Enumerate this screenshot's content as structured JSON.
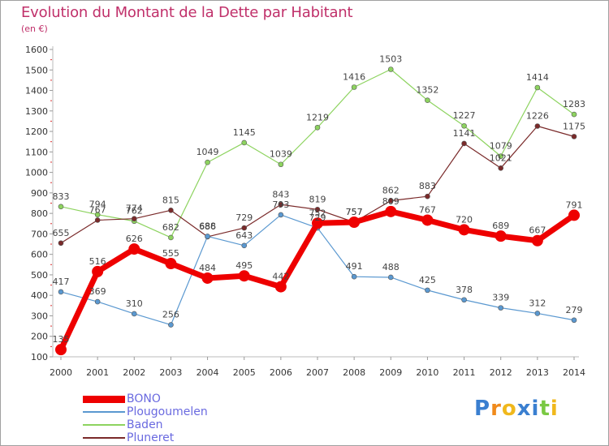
{
  "header": {
    "title": "Evolution du Montant de la Dette par Habitant",
    "subtitle": "(en €)"
  },
  "logo": {
    "letters": [
      "P",
      "r",
      "o",
      "x",
      "i",
      "t",
      "i"
    ],
    "colors": [
      "#3a7fd0",
      "#f08a1c",
      "#f0b81c",
      "#3a7fd0",
      "#3a7fd0",
      "#7ac943",
      "#f0b81c"
    ]
  },
  "chart_data": {
    "type": "line",
    "x": [
      "2000",
      "2001",
      "2002",
      "2003",
      "2004",
      "2005",
      "2006",
      "2007",
      "2008",
      "2009",
      "2010",
      "2011",
      "2012",
      "2013",
      "2014"
    ],
    "ylim": [
      100,
      1600
    ],
    "yticks": [
      "100",
      "200",
      "300",
      "400",
      "500",
      "600",
      "700",
      "800",
      "900",
      "1000",
      "1100",
      "1200",
      "1300",
      "1400",
      "1500",
      "1600"
    ],
    "grid": false,
    "legend_position": "bottom-left",
    "series": [
      {
        "name": "BONO",
        "color": "#ee0000",
        "values": [
          135,
          516,
          626,
          555,
          484,
          495,
          442,
          752,
          757,
          809,
          767,
          720,
          689,
          667,
          791
        ],
        "labels": [
          "135",
          "516",
          "626",
          "555",
          "484",
          "495",
          "442",
          "752",
          "757",
          "809",
          "767",
          "720",
          "689",
          "667",
          "791"
        ]
      },
      {
        "name": "Plougoumelen",
        "color": "#5a98d0",
        "values": [
          417,
          369,
          310,
          256,
          688,
          643,
          793,
          729,
          491,
          488,
          425,
          378,
          339,
          312,
          279
        ],
        "labels": [
          "417",
          "369",
          "310",
          "256",
          "688",
          "643",
          "793",
          "729",
          "491",
          "488",
          "425",
          "378",
          "339",
          "312",
          "279"
        ]
      },
      {
        "name": "Baden",
        "color": "#8dd35f",
        "values": [
          833,
          794,
          762,
          682,
          1049,
          1145,
          1039,
          1219,
          1416,
          1503,
          1352,
          1227,
          1079,
          1414,
          1283
        ],
        "labels": [
          "833",
          "794",
          "762",
          "682",
          "1049",
          "1145",
          "1039",
          "1219",
          "1416",
          "1503",
          "1352",
          "1227",
          "1079",
          "1414",
          "1283"
        ]
      },
      {
        "name": "Pluneret",
        "color": "#7a2a2a",
        "values": [
          655,
          767,
          774,
          815,
          686,
          729,
          843,
          819,
          757,
          862,
          883,
          1141,
          1021,
          1226,
          1175
        ],
        "labels": [
          "655",
          "767",
          "774",
          "815",
          "686",
          "729",
          "843",
          "819",
          "757",
          "862",
          "883",
          "1141",
          "1021",
          "1226",
          "1175"
        ]
      }
    ]
  }
}
